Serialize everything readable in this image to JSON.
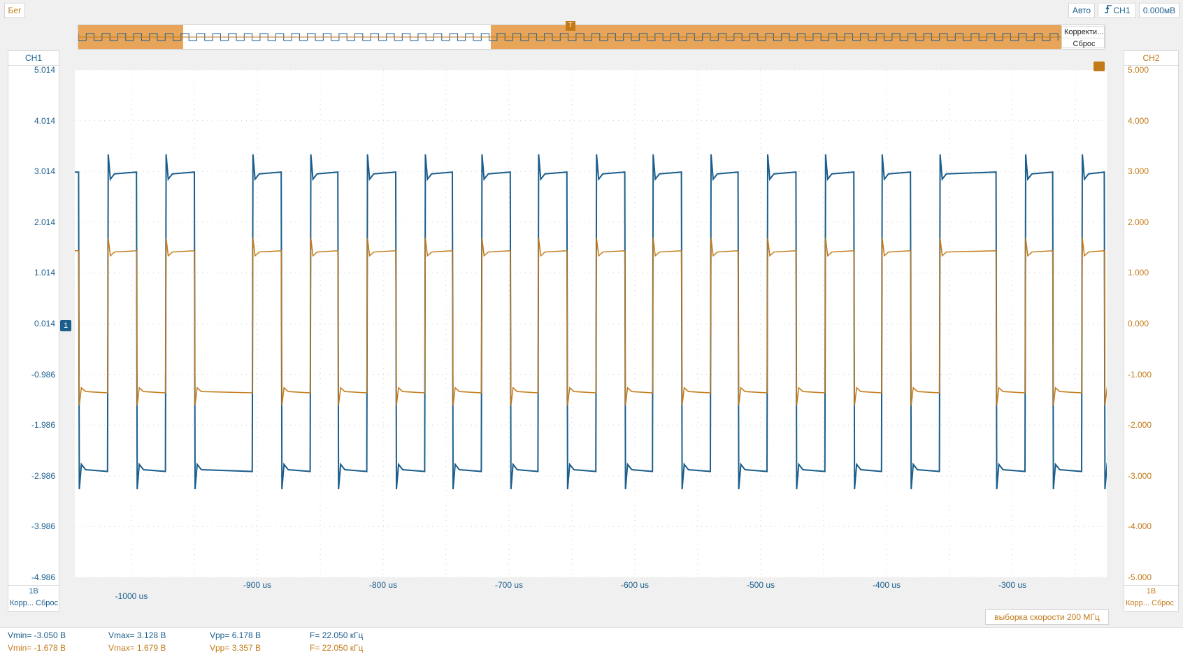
{
  "toolbar": {
    "run_label": "Бег",
    "auto_label": "Авто",
    "trigger_channel": "CH1",
    "trigger_level": "0.000мВ"
  },
  "overview": {
    "trigger_marker": "T",
    "correct_label": "Корректи...",
    "reset_label": "Сброс"
  },
  "ch1_panel": {
    "title": "CH1",
    "scale": "1В",
    "correct_label": "Корр...",
    "reset_label": "Сброс",
    "color": "#1b5e8c"
  },
  "ch2_panel": {
    "title": "CH2",
    "scale": "1В",
    "correct_label": "Корр...",
    "reset_label": "Сброс",
    "color": "#c27a18"
  },
  "sample_rate": "выборка скорости 200 МГц",
  "measurements": {
    "ch1": {
      "vmin": "Vmin= -3.050 В",
      "vmax": "Vmax= 3.128 В",
      "vpp": "Vpp= 6.178 В",
      "freq": "F= 22.050 кГц"
    },
    "ch2": {
      "vmin": "Vmin= -1.678 В",
      "vmax": "Vmax= 1.679 В",
      "vpp": "Vpp= 3.357 В",
      "freq": "F= 22.050 кГц"
    }
  },
  "chart_data": {
    "type": "line",
    "xlabel": "",
    "ylabel": "",
    "x_ticks": [
      "-1000 us",
      "-900 us",
      "-800 us",
      "-700 us",
      "-600 us",
      "-500 us",
      "-400 us",
      "-300 us"
    ],
    "x_tick_values": [
      -1000,
      -900,
      -800,
      -700,
      -600,
      -500,
      -400,
      -300
    ],
    "xlim": [
      -1045,
      -225
    ],
    "left_axis": {
      "ticks": [
        "5.014",
        "4.014",
        "3.014",
        "2.014",
        "1.014",
        "0.014",
        "-0.986",
        "-1.986",
        "-2.986",
        "-3.986",
        "-4.986"
      ],
      "ylim": [
        -4.986,
        5.014
      ]
    },
    "right_axis": {
      "ticks": [
        "5.000",
        "4.000",
        "3.000",
        "2.000",
        "1.000",
        "0.000",
        "-1.000",
        "-2.000",
        "-3.000",
        "-4.000",
        "-5.000"
      ],
      "ylim": [
        -5.0,
        5.0
      ]
    },
    "series": [
      {
        "name": "CH1",
        "high": 3.0,
        "low": -2.9,
        "color": "#1b5e8c"
      },
      {
        "name": "CH2",
        "high": 1.45,
        "low": -1.35,
        "color": "#c27a18"
      }
    ],
    "period_us": 45.35,
    "edges_us": [
      -1042,
      -1019,
      -996,
      -973,
      -950,
      -904,
      -881,
      -858,
      -836,
      -813,
      -790,
      -767,
      -745,
      -722,
      -699,
      -677,
      -654,
      -631,
      -608,
      -586,
      -563,
      -540,
      -518,
      -495,
      -472,
      -449,
      -426,
      -404,
      -381,
      -358,
      -313,
      -290,
      -268,
      -245,
      -227
    ],
    "grid": true
  }
}
